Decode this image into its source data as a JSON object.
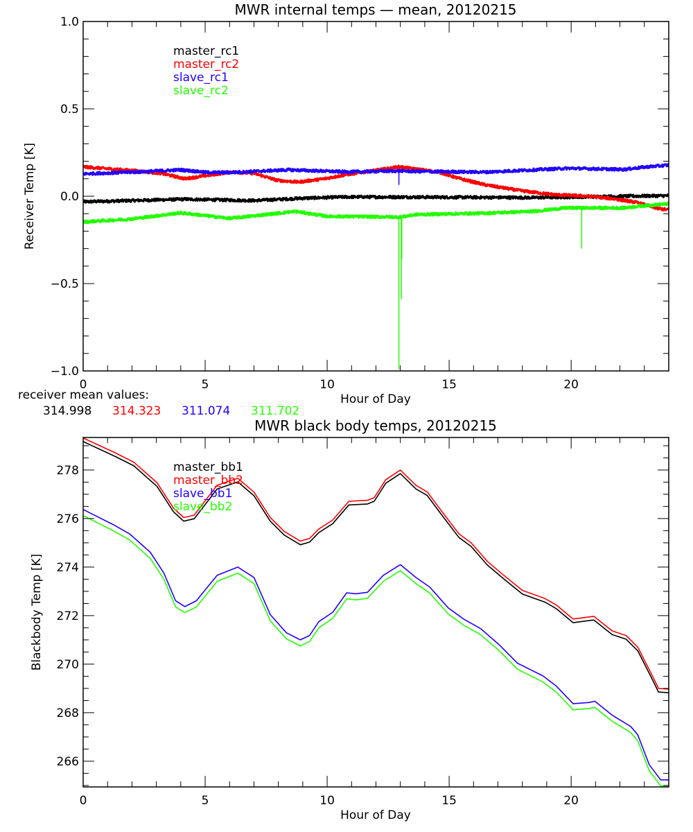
{
  "colors": {
    "master1": "#000000",
    "master2": "#ff0000",
    "slave1": "#2200ff",
    "slave2": "#22ff00"
  },
  "chart_data": [
    {
      "type": "line",
      "title": "MWR internal temps — mean, 20120215",
      "xlabel": "Hour of Day",
      "ylabel": "Receiver Temp [K]",
      "xlim": [
        0,
        24
      ],
      "ylim": [
        -1.0,
        1.0
      ],
      "xticks": [
        0,
        5,
        10,
        15,
        20
      ],
      "xtick_labels": [
        "0",
        "5",
        "10",
        "15",
        "20"
      ],
      "yticks": [
        -1.0,
        -0.5,
        0.0,
        0.5,
        1.0
      ],
      "ytick_labels": [
        "−1.0",
        "−0.5",
        "0.0",
        "0.5",
        "1.0"
      ],
      "x_minor_step": 1,
      "y_minor_step": 0.1,
      "grid": false,
      "legend_position": "top-left",
      "series": [
        {
          "name": "master_rc1",
          "color": "#000000",
          "points": [
            [
              0,
              -0.032
            ],
            [
              4.17,
              -0.017
            ],
            [
              7.0,
              -0.025
            ],
            [
              8.9,
              -0.012
            ],
            [
              10.8,
              -0.004
            ],
            [
              13.64,
              -0.005
            ],
            [
              18.4,
              -0.008
            ],
            [
              22.16,
              0.0
            ],
            [
              24,
              0.003
            ]
          ]
        },
        {
          "name": "master_rc2",
          "color": "#ff0000",
          "points": [
            [
              0,
              0.168
            ],
            [
              2.27,
              0.144
            ],
            [
              3.2,
              0.131
            ],
            [
              4.17,
              0.1
            ],
            [
              5.1,
              0.119
            ],
            [
              6.06,
              0.139
            ],
            [
              7.0,
              0.131
            ],
            [
              7.95,
              0.091
            ],
            [
              8.8,
              0.081
            ],
            [
              9.85,
              0.099
            ],
            [
              10.8,
              0.124
            ],
            [
              12.97,
              0.168
            ],
            [
              13.64,
              0.155
            ],
            [
              14.6,
              0.138
            ],
            [
              15.34,
              0.104
            ],
            [
              16.48,
              0.065
            ],
            [
              17.9,
              0.032
            ],
            [
              19.3,
              0.009
            ],
            [
              20.7,
              0.0
            ],
            [
              21.7,
              -0.014
            ],
            [
              22.63,
              -0.034
            ],
            [
              23.58,
              -0.071
            ],
            [
              24,
              -0.078
            ]
          ]
        },
        {
          "name": "slave_rc1",
          "color": "#2200ff",
          "points": [
            [
              0,
              0.128
            ],
            [
              2.27,
              0.139
            ],
            [
              3.98,
              0.151
            ],
            [
              5.1,
              0.136
            ],
            [
              6.06,
              0.136
            ],
            [
              8.43,
              0.151
            ],
            [
              10.8,
              0.139
            ],
            [
              13.0,
              0.145
            ],
            [
              13.64,
              0.142
            ],
            [
              16.48,
              0.138
            ],
            [
              19.9,
              0.16
            ],
            [
              22.16,
              0.153
            ],
            [
              23.1,
              0.168
            ],
            [
              24,
              0.178
            ]
          ],
          "spikes": [
            [
              12.94,
              0.065
            ]
          ]
        },
        {
          "name": "slave_rc2",
          "color": "#22ff00",
          "points": [
            [
              0,
              -0.147
            ],
            [
              2.0,
              -0.13
            ],
            [
              4.0,
              -0.095
            ],
            [
              6.0,
              -0.127
            ],
            [
              8.7,
              -0.087
            ],
            [
              10.0,
              -0.115
            ],
            [
              13.0,
              -0.119
            ],
            [
              13.64,
              -0.105
            ],
            [
              16.48,
              -0.097
            ],
            [
              18.4,
              -0.087
            ],
            [
              19.8,
              -0.067
            ],
            [
              22.16,
              -0.067
            ],
            [
              23.1,
              -0.052
            ],
            [
              24,
              -0.044
            ]
          ],
          "spikes": [
            [
              12.94,
              -0.99
            ],
            [
              13.04,
              -0.59
            ],
            [
              13.06,
              -0.36
            ],
            [
              20.43,
              -0.3
            ]
          ]
        }
      ],
      "annotation_label": "receiver mean values:",
      "annotation_values": [
        "314.998",
        "314.323",
        "311.074",
        "311.702"
      ]
    },
    {
      "type": "line",
      "title": "MWR black body temps, 20120215",
      "xlabel": "Hour of Day",
      "ylabel": "Blackbody Temp [K]",
      "xlim": [
        0,
        24
      ],
      "ylim": [
        264.94,
        279.34
      ],
      "xticks": [
        0,
        5,
        10,
        15,
        20
      ],
      "xtick_labels": [
        "0",
        "5",
        "10",
        "15",
        "20"
      ],
      "yticks": [
        266,
        268,
        270,
        272,
        274,
        276,
        278
      ],
      "ytick_labels": [
        "266",
        "268",
        "270",
        "272",
        "274",
        "276",
        "278"
      ],
      "x_minor_step": 1,
      "y_minor_step": 0.5,
      "grid": false,
      "legend_position": "top-left",
      "series": [
        {
          "name": "master_bb1",
          "color": "#000000",
          "points": [
            [
              0,
              279.17
            ],
            [
              1.33,
              278.55
            ],
            [
              2.08,
              278.17
            ],
            [
              3.03,
              277.32
            ],
            [
              3.7,
              276.28
            ],
            [
              4.12,
              275.89
            ],
            [
              4.55,
              275.99
            ],
            [
              5.49,
              277.22
            ],
            [
              6.34,
              277.51
            ],
            [
              7.0,
              276.94
            ],
            [
              7.67,
              275.89
            ],
            [
              8.24,
              275.32
            ],
            [
              8.9,
              274.92
            ],
            [
              9.28,
              275.03
            ],
            [
              9.66,
              275.42
            ],
            [
              10.23,
              275.79
            ],
            [
              10.89,
              276.56
            ],
            [
              11.65,
              276.6
            ],
            [
              11.93,
              276.71
            ],
            [
              12.4,
              277.45
            ],
            [
              13.0,
              277.85
            ],
            [
              13.64,
              277.22
            ],
            [
              14.1,
              276.95
            ],
            [
              14.77,
              276.05
            ],
            [
              15.4,
              275.22
            ],
            [
              15.9,
              274.85
            ],
            [
              16.57,
              274.08
            ],
            [
              17.24,
              273.51
            ],
            [
              18.0,
              272.89
            ],
            [
              18.94,
              272.55
            ],
            [
              19.4,
              272.28
            ],
            [
              20.08,
              271.71
            ],
            [
              20.93,
              271.82
            ],
            [
              21.68,
              271.22
            ],
            [
              22.25,
              271.03
            ],
            [
              22.73,
              270.55
            ],
            [
              23.3,
              269.42
            ],
            [
              23.58,
              268.85
            ],
            [
              24,
              268.82
            ]
          ]
        },
        {
          "name": "master_bb2",
          "color": "#ff0000",
          "points": [
            [
              0,
              279.32
            ],
            [
              1.33,
              278.7
            ],
            [
              2.08,
              278.32
            ],
            [
              3.03,
              277.47
            ],
            [
              3.7,
              276.43
            ],
            [
              4.12,
              276.04
            ],
            [
              4.55,
              276.14
            ],
            [
              5.49,
              277.37
            ],
            [
              6.34,
              277.66
            ],
            [
              7.0,
              277.09
            ],
            [
              7.67,
              276.04
            ],
            [
              8.24,
              275.47
            ],
            [
              8.9,
              275.07
            ],
            [
              9.28,
              275.18
            ],
            [
              9.66,
              275.57
            ],
            [
              10.23,
              275.94
            ],
            [
              10.89,
              276.71
            ],
            [
              11.65,
              276.75
            ],
            [
              11.93,
              276.86
            ],
            [
              12.4,
              277.6
            ],
            [
              13.0,
              278.0
            ],
            [
              13.64,
              277.37
            ],
            [
              14.1,
              277.1
            ],
            [
              14.77,
              276.2
            ],
            [
              15.4,
              275.37
            ],
            [
              15.9,
              275.0
            ],
            [
              16.57,
              274.23
            ],
            [
              17.24,
              273.66
            ],
            [
              18.0,
              273.04
            ],
            [
              18.94,
              272.7
            ],
            [
              19.4,
              272.43
            ],
            [
              20.08,
              271.86
            ],
            [
              20.93,
              271.97
            ],
            [
              21.68,
              271.37
            ],
            [
              22.25,
              271.18
            ],
            [
              22.73,
              270.7
            ],
            [
              23.3,
              269.57
            ],
            [
              23.58,
              269.0
            ],
            [
              24,
              268.97
            ]
          ]
        },
        {
          "name": "slave_bb1",
          "color": "#2200ff",
          "points": [
            [
              0,
              276.37
            ],
            [
              1.23,
              275.75
            ],
            [
              1.9,
              275.37
            ],
            [
              2.75,
              274.61
            ],
            [
              3.31,
              273.75
            ],
            [
              3.79,
              272.61
            ],
            [
              4.17,
              272.37
            ],
            [
              4.64,
              272.61
            ],
            [
              5.49,
              273.66
            ],
            [
              6.34,
              274.0
            ],
            [
              7.0,
              273.57
            ],
            [
              7.67,
              272.04
            ],
            [
              8.33,
              271.29
            ],
            [
              8.9,
              271.0
            ],
            [
              9.28,
              271.18
            ],
            [
              9.66,
              271.75
            ],
            [
              10.23,
              272.14
            ],
            [
              10.8,
              272.94
            ],
            [
              11.17,
              272.9
            ],
            [
              11.65,
              272.96
            ],
            [
              12.3,
              273.66
            ],
            [
              13.0,
              274.1
            ],
            [
              13.64,
              273.57
            ],
            [
              14.2,
              273.18
            ],
            [
              14.96,
              272.32
            ],
            [
              15.6,
              271.85
            ],
            [
              16.28,
              271.47
            ],
            [
              17.05,
              270.8
            ],
            [
              17.8,
              270.04
            ],
            [
              18.85,
              269.51
            ],
            [
              19.4,
              269.09
            ],
            [
              20.08,
              268.37
            ],
            [
              20.74,
              268.42
            ],
            [
              20.97,
              268.47
            ],
            [
              21.68,
              267.9
            ],
            [
              22.44,
              267.43
            ],
            [
              22.73,
              267.09
            ],
            [
              23.2,
              265.86
            ],
            [
              23.67,
              265.23
            ],
            [
              24,
              265.23
            ]
          ]
        },
        {
          "name": "slave_bb2",
          "color": "#22ff00",
          "points": [
            [
              0,
              276.12
            ],
            [
              1.23,
              275.5
            ],
            [
              1.9,
              275.12
            ],
            [
              2.75,
              274.36
            ],
            [
              3.31,
              273.5
            ],
            [
              3.79,
              272.36
            ],
            [
              4.17,
              272.12
            ],
            [
              4.64,
              272.36
            ],
            [
              5.49,
              273.41
            ],
            [
              6.34,
              273.75
            ],
            [
              7.0,
              273.32
            ],
            [
              7.67,
              271.79
            ],
            [
              8.33,
              271.04
            ],
            [
              8.9,
              270.75
            ],
            [
              9.28,
              270.93
            ],
            [
              9.66,
              271.5
            ],
            [
              10.23,
              271.89
            ],
            [
              10.8,
              272.69
            ],
            [
              11.17,
              272.65
            ],
            [
              11.65,
              272.71
            ],
            [
              12.3,
              273.41
            ],
            [
              13.0,
              273.85
            ],
            [
              13.64,
              273.32
            ],
            [
              14.2,
              272.93
            ],
            [
              14.96,
              272.07
            ],
            [
              15.6,
              271.6
            ],
            [
              16.28,
              271.22
            ],
            [
              17.05,
              270.55
            ],
            [
              17.8,
              269.79
            ],
            [
              18.85,
              269.26
            ],
            [
              19.4,
              268.84
            ],
            [
              20.08,
              268.12
            ],
            [
              20.74,
              268.17
            ],
            [
              20.97,
              268.22
            ],
            [
              21.68,
              267.65
            ],
            [
              22.44,
              267.18
            ],
            [
              22.73,
              266.84
            ],
            [
              23.2,
              265.61
            ],
            [
              23.67,
              264.98
            ],
            [
              24,
              264.95
            ]
          ]
        }
      ]
    }
  ]
}
